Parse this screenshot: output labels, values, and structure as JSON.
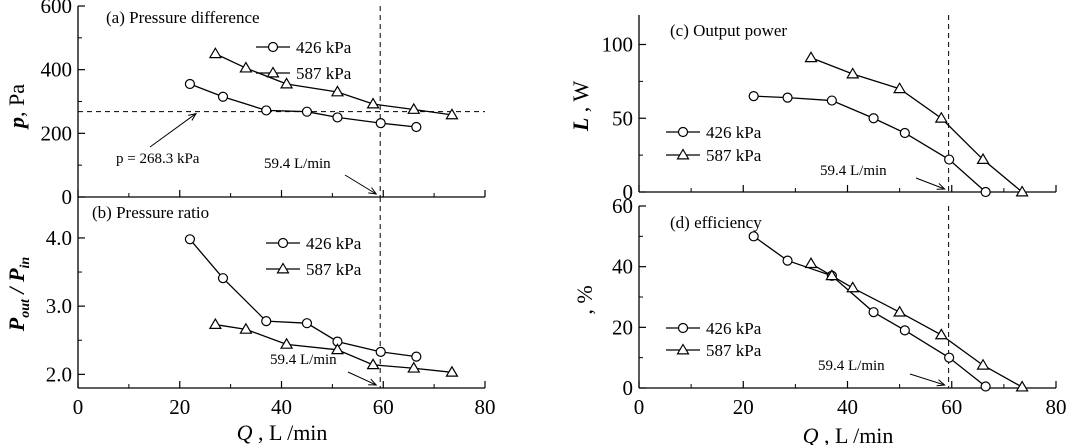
{
  "chart_data": [
    {
      "type": "line",
      "panel": "a",
      "title": "(a) Pressure difference",
      "ylabel_symbol": "p",
      "ylabel_unit": ", Pa",
      "xlim": [
        0,
        80
      ],
      "ylim": [
        0,
        600
      ],
      "yticks": [
        0,
        200,
        400,
        600
      ],
      "series": [
        {
          "name": "426 kPa",
          "marker": "circle",
          "x": [
            22,
            28.5,
            37,
            45,
            51,
            59.5,
            66.5
          ],
          "y": [
            355,
            315,
            272,
            268,
            250,
            232,
            220
          ]
        },
        {
          "name": "587 kPa",
          "marker": "triangle",
          "x": [
            27,
            33,
            41,
            51,
            58,
            66,
            73.5
          ],
          "y": [
            450,
            405,
            355,
            330,
            292,
            275,
            258
          ]
        }
      ],
      "hline": {
        "y": 268.3,
        "label": "p = 268.3 kPa"
      },
      "vline": {
        "x": 59.4,
        "label": "59.4 L/min"
      },
      "legend_position": "top-center"
    },
    {
      "type": "line",
      "panel": "b",
      "title": "(b) Pressure ratio",
      "ylabel_main": "P",
      "ylabel_sub1": "out",
      "ylabel_mid": " / P",
      "ylabel_sub2": "in",
      "xlabel_symbol": "Q",
      "xlabel_unit": " , L /min",
      "xlim": [
        0,
        80
      ],
      "ylim": [
        1.8,
        4.6
      ],
      "xticks": [
        0,
        20,
        40,
        60,
        80
      ],
      "yticks": [
        "2.0",
        "3.0",
        "4.0"
      ],
      "series": [
        {
          "name": "426 kPa",
          "marker": "circle",
          "x": [
            22,
            28.5,
            37,
            45,
            51,
            59.5,
            66.5
          ],
          "y": [
            3.98,
            3.41,
            2.78,
            2.75,
            2.48,
            2.33,
            2.26
          ]
        },
        {
          "name": "587 kPa",
          "marker": "triangle",
          "x": [
            27,
            33,
            41,
            51,
            58,
            66,
            73.5
          ],
          "y": [
            2.73,
            2.66,
            2.44,
            2.36,
            2.14,
            2.09,
            2.03
          ]
        }
      ],
      "vline": {
        "x": 59.4,
        "label": "59.4 L/min"
      },
      "legend_position": "top-center"
    },
    {
      "type": "line",
      "panel": "c",
      "title": "(c) Output power",
      "ylabel_symbol": "L",
      "ylabel_unit": " , W",
      "xlim": [
        0,
        80
      ],
      "ylim": [
        0,
        120
      ],
      "yticks": [
        0,
        50,
        100
      ],
      "series": [
        {
          "name": "426 kPa",
          "marker": "circle",
          "x": [
            22,
            28.5,
            37,
            45,
            51,
            59.5,
            66.5
          ],
          "y": [
            65,
            64,
            62,
            50,
            40,
            22,
            0
          ]
        },
        {
          "name": "587 kPa",
          "marker": "triangle",
          "x": [
            33,
            41,
            50,
            58,
            66,
            73.5
          ],
          "y": [
            91,
            80,
            70,
            50,
            22,
            0
          ]
        }
      ],
      "vline": {
        "x": 59.4,
        "label": "59.4 L/min"
      },
      "legend_position": "middle-left"
    },
    {
      "type": "line",
      "panel": "d",
      "title": "(d) efficiency",
      "ylabel_unit": ", %",
      "xlabel_symbol": "Q",
      "xlabel_unit": " , L /min",
      "xlim": [
        0,
        80
      ],
      "ylim": [
        0,
        60
      ],
      "xticks": [
        0,
        20,
        40,
        60,
        80
      ],
      "yticks": [
        0,
        20,
        40,
        60
      ],
      "series": [
        {
          "name": "426 kPa",
          "marker": "circle",
          "x": [
            22,
            28.5,
            37,
            45,
            51,
            59.5,
            66.5
          ],
          "y": [
            50,
            42,
            37,
            25,
            19,
            10,
            0.5
          ]
        },
        {
          "name": "587 kPa",
          "marker": "triangle",
          "x": [
            33,
            37,
            41,
            50,
            58,
            66,
            73.5
          ],
          "y": [
            41,
            37,
            33,
            25,
            17.5,
            7.5,
            0.3
          ]
        }
      ],
      "vline": {
        "x": 59.4,
        "label": "59.4 L/min"
      },
      "legend_position": "bottom-left"
    }
  ]
}
